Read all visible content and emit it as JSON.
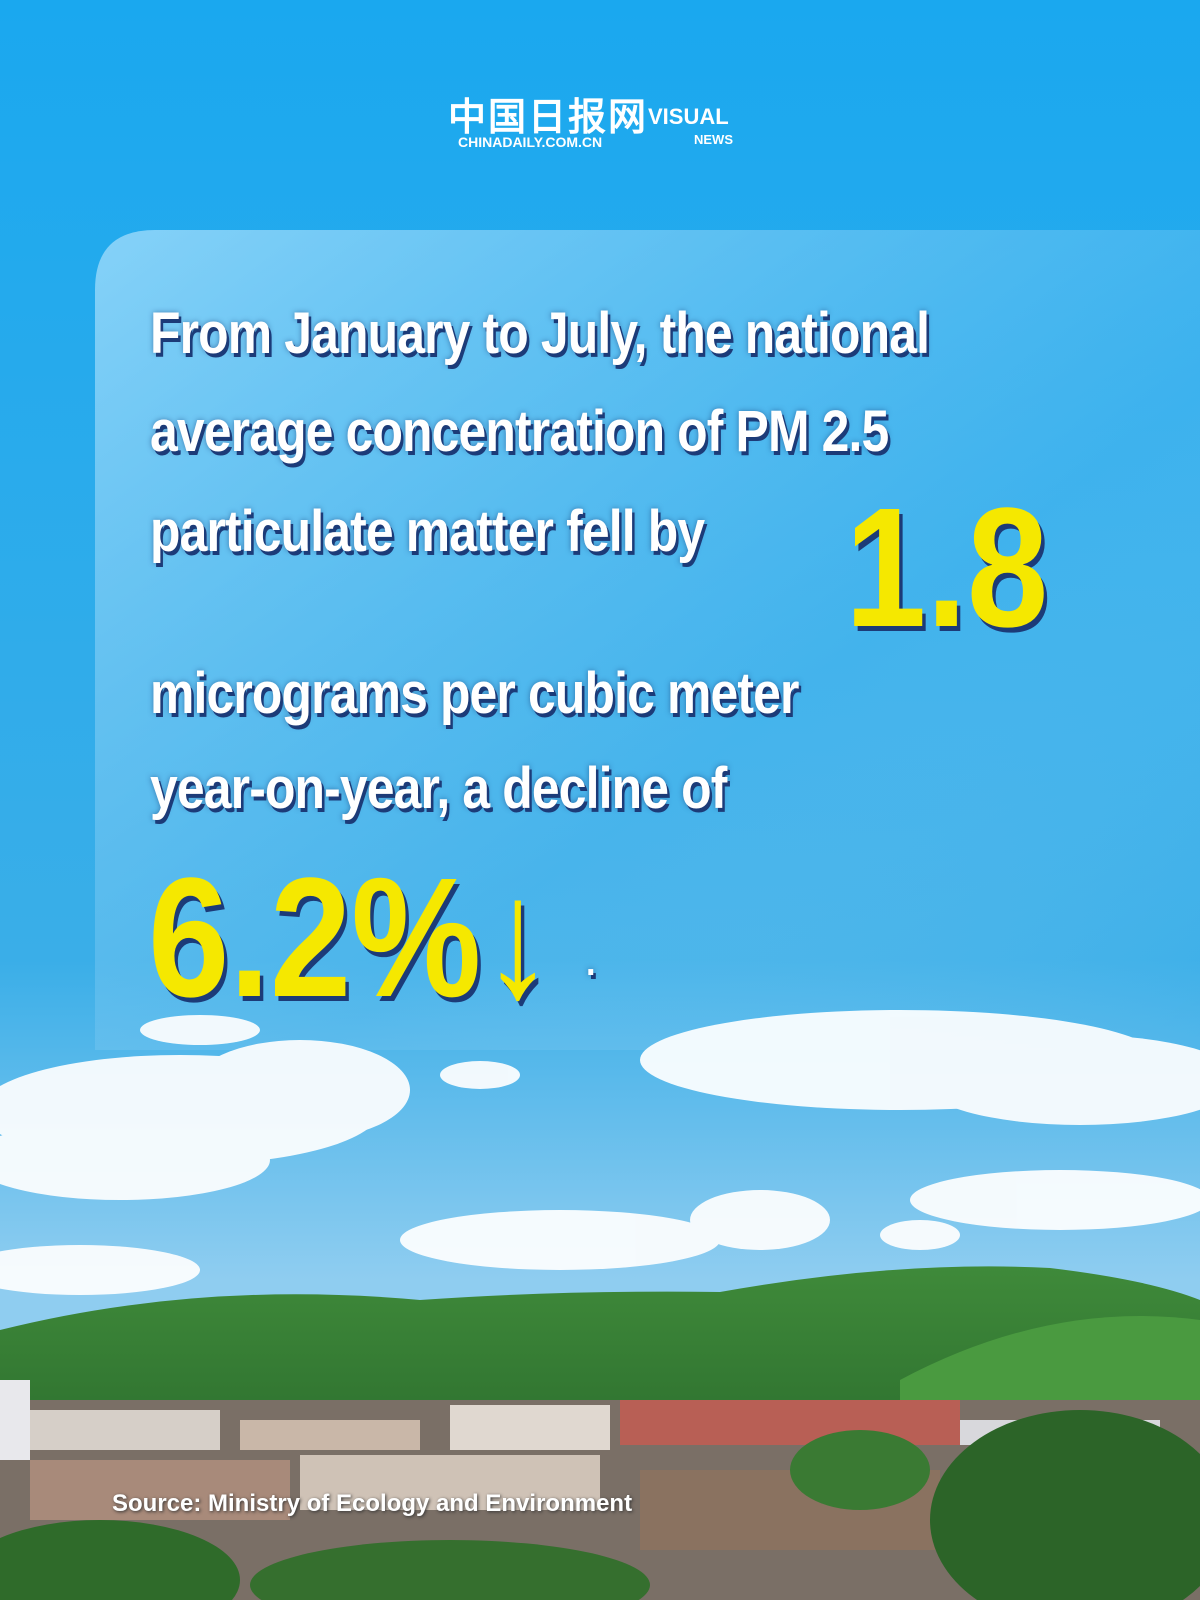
{
  "header": {
    "logo_cn": "中国日报网",
    "logo_url": "CHINADAILY.COM.CN",
    "brand": "VISUAL",
    "brand_sub": "NEWS"
  },
  "body": {
    "lines": [
      "From January to July, the national",
      "average concentration of PM 2.5",
      "particulate matter fell by"
    ],
    "highlight_1": "1.8",
    "lines_2": [
      "micrograms per cubic meter",
      "year-on-year, a decline of"
    ],
    "highlight_2": "6.2%↓",
    "end": "."
  },
  "source": "Source: Ministry of Ecology and Environment"
}
